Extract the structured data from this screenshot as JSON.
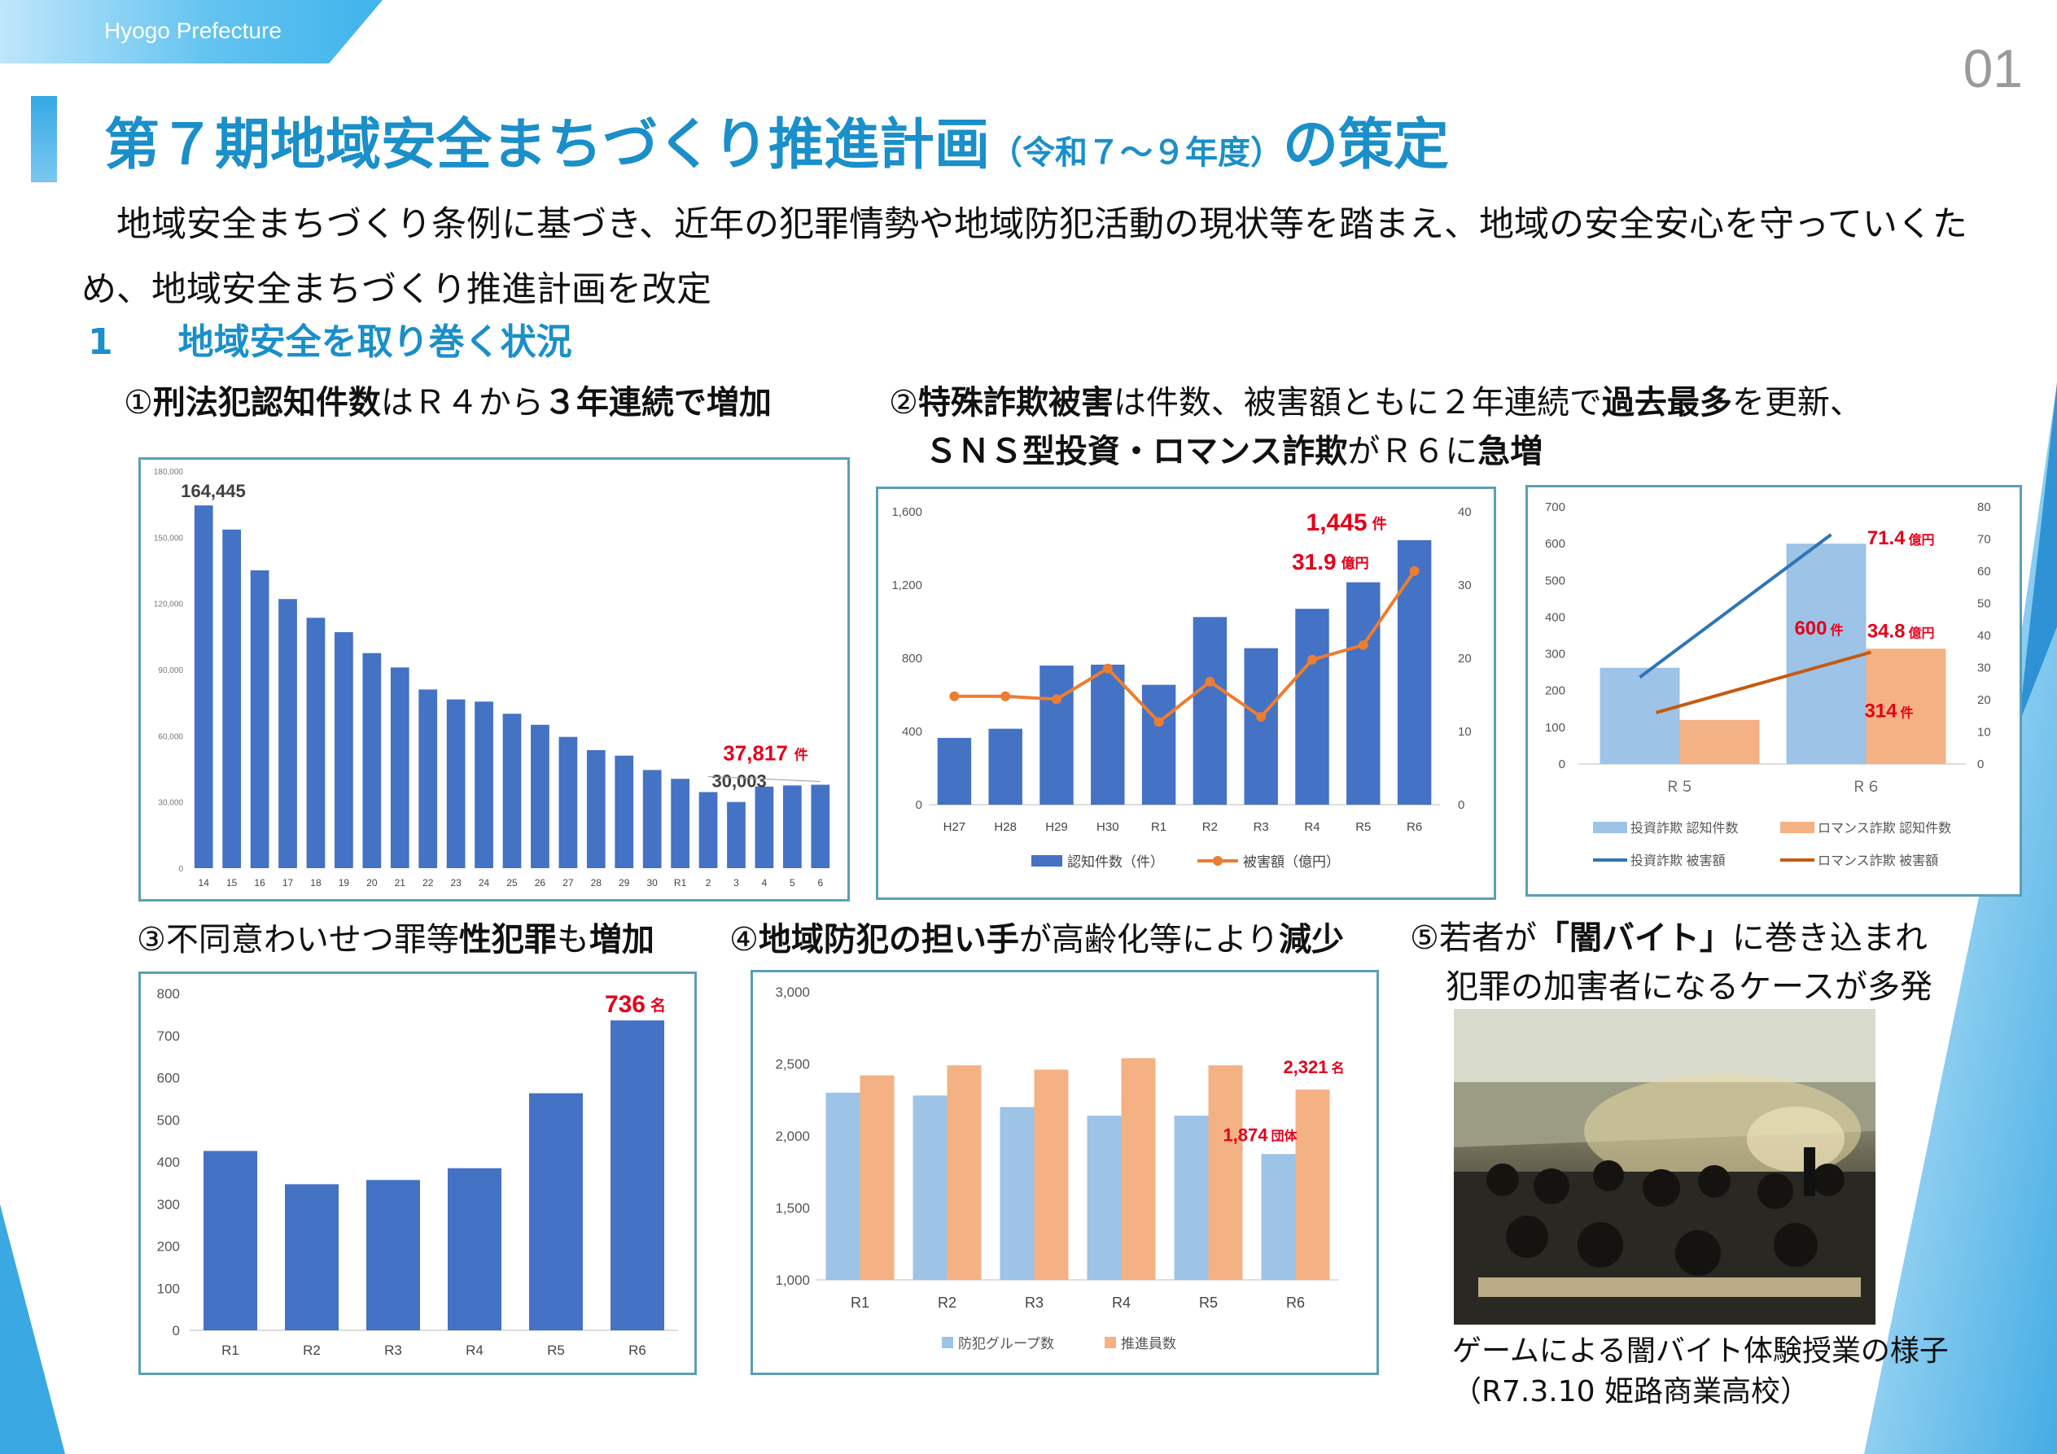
{
  "header": {
    "org": "Hyogo Prefecture",
    "page_number": "01"
  },
  "title": {
    "main": "第７期地域安全まちづくり推進計画",
    "paren": "（令和７～９年度）",
    "suffix": "の策定"
  },
  "intro": "　地域安全まちづくり条例に基づき、近年の犯罪情勢や地域防犯活動の現状等を踏まえ、地域の安全安心を守っていくため、地域安全まちづくり推進計画を改定",
  "section": {
    "num": "1",
    "title": "地域安全を取り巻く状況"
  },
  "captions": {
    "c1": {
      "p1": "①",
      "b1": "刑法犯認知件数",
      "p2": "はＲ４から",
      "b2": "３年連続で増加"
    },
    "c2": {
      "p1": "②",
      "b1": "特殊詐欺被害",
      "p2": "は件数、被害額ともに２年連続で",
      "b2": "過去最多",
      "p3": "を更新、",
      "b3": "ＳＮＳ型投資・ロマンス詐欺",
      "p4": "がＲ６に",
      "b4": "急増"
    },
    "c3": {
      "p1": "③不同意わいせつ罪等",
      "b1": "性犯罪",
      "p2": "も",
      "b2": "増加"
    },
    "c4": {
      "p1": "④",
      "b1": "地域防犯の担い手",
      "p2": "が高齢化等により",
      "b2": "減少"
    },
    "c5": {
      "l1a": "⑤若者が",
      "l1b": "「闇バイト」",
      "l1c": "に巻き込まれ",
      "l2": "犯罪の加害者になるケースが多発"
    }
  },
  "photo": {
    "caption1": "ゲームによる闇バイト体験授業の様子",
    "caption2": "（R7.3.10 姫路商業高校）"
  },
  "chart_data": [
    {
      "id": "crime",
      "type": "bar",
      "categories": [
        "14",
        "15",
        "16",
        "17",
        "18",
        "19",
        "20",
        "21",
        "22",
        "23",
        "24",
        "25",
        "26",
        "27",
        "28",
        "29",
        "30",
        "R1",
        "2",
        "3",
        "4",
        "5",
        "6"
      ],
      "values": [
        164445,
        153500,
        135000,
        122000,
        113500,
        107000,
        97500,
        91000,
        81000,
        76500,
        75500,
        70000,
        65000,
        59500,
        53500,
        51000,
        44500,
        40500,
        34500,
        30003,
        37000,
        37500,
        37817
      ],
      "ylim": [
        0,
        180000
      ],
      "yticks": [
        "0",
        "30,000",
        "60,000",
        "90,000",
        "120,000",
        "150,000",
        "180,000"
      ],
      "annotations": {
        "first": "164,445",
        "last_value": "37,817",
        "last_unit": "件",
        "r3": "30,003"
      },
      "colors": {
        "bar": "#4472c4"
      }
    },
    {
      "id": "fraud",
      "type": "bar+line",
      "categories": [
        "H27",
        "H28",
        "H29",
        "H30",
        "R1",
        "R2",
        "R3",
        "R4",
        "R5",
        "R6"
      ],
      "series": [
        {
          "name": "認知件数（件）",
          "values": [
            365,
            415,
            760,
            765,
            655,
            1025,
            855,
            1070,
            1215,
            1445
          ],
          "axis": "left"
        },
        {
          "name": "被害額（億円）",
          "values": [
            14.8,
            14.8,
            14.4,
            18.6,
            11.3,
            16.8,
            12.0,
            19.8,
            21.8,
            31.9
          ],
          "axis": "right"
        }
      ],
      "ylim_left": [
        0,
        1600
      ],
      "yticks_left": [
        "0",
        "400",
        "800",
        "1,200",
        "1,600"
      ],
      "ylim_right": [
        0,
        40
      ],
      "yticks_right": [
        "0",
        "10",
        "20",
        "30",
        "40"
      ],
      "annotations": {
        "count_value": "1,445",
        "count_unit": "件",
        "amount_value": "31.9",
        "amount_unit": "億円"
      },
      "colors": {
        "bar": "#4472c4",
        "line": "#ed7d31"
      }
    },
    {
      "id": "sns",
      "type": "bar+line",
      "categories": [
        "Ｒ５",
        "Ｒ６"
      ],
      "series": [
        {
          "name": "投資詐欺 認知件数",
          "values": [
            262,
            600
          ],
          "axis": "left"
        },
        {
          "name": "ロマンス詐欺 認知件数",
          "values": [
            120,
            314
          ],
          "axis": "left"
        },
        {
          "name": "投資詐欺 被害額",
          "values": [
            27,
            71.4
          ],
          "axis": "right"
        },
        {
          "name": "ロマンス詐欺 被害額",
          "values": [
            16,
            34.8
          ],
          "axis": "right"
        }
      ],
      "ylim_left": [
        0,
        700
      ],
      "yticks_left": [
        "0",
        "100",
        "200",
        "300",
        "400",
        "500",
        "600",
        "700"
      ],
      "ylim_right": [
        0,
        80
      ],
      "yticks_right": [
        "0",
        "10",
        "20",
        "30",
        "40",
        "50",
        "60",
        "70",
        "80"
      ],
      "annotations": {
        "inv_amount": "71.4",
        "inv_count": "600",
        "rom_amount": "34.8",
        "rom_count": "314",
        "unit_oku": "億円",
        "unit_ken": "件"
      },
      "colors": {
        "inv_bar": "#9dc3e6",
        "rom_bar": "#f4b183",
        "inv_line": "#2e75b6",
        "rom_line": "#c55a11"
      }
    },
    {
      "id": "sexcrime",
      "type": "bar",
      "categories": [
        "R1",
        "R2",
        "R3",
        "R4",
        "R5",
        "R6"
      ],
      "values": [
        426,
        347,
        357,
        385,
        563,
        736
      ],
      "ylim": [
        0,
        800
      ],
      "yticks": [
        "0",
        "100",
        "200",
        "300",
        "400",
        "500",
        "600",
        "700",
        "800"
      ],
      "annotations": {
        "last_value": "736",
        "last_unit": "名"
      },
      "colors": {
        "bar": "#4472c4"
      }
    },
    {
      "id": "volunteers",
      "type": "bar",
      "categories": [
        "R1",
        "R2",
        "R3",
        "R4",
        "R5",
        "R6"
      ],
      "series": [
        {
          "name": "防犯グループ数",
          "values": [
            2300,
            2280,
            2200,
            2140,
            2140,
            1874
          ]
        },
        {
          "name": "推進員数",
          "values": [
            2420,
            2490,
            2460,
            2540,
            2490,
            2321
          ]
        }
      ],
      "ylim": [
        1000,
        3000
      ],
      "yticks": [
        "1,000",
        "1,500",
        "2,000",
        "2,500",
        "3,000"
      ],
      "annotations": {
        "grp_value": "1,874",
        "grp_unit": "団体",
        "vol_value": "2,321",
        "vol_unit": "名"
      },
      "colors": {
        "grp": "#9dc3e6",
        "vol": "#f4b183"
      }
    }
  ]
}
